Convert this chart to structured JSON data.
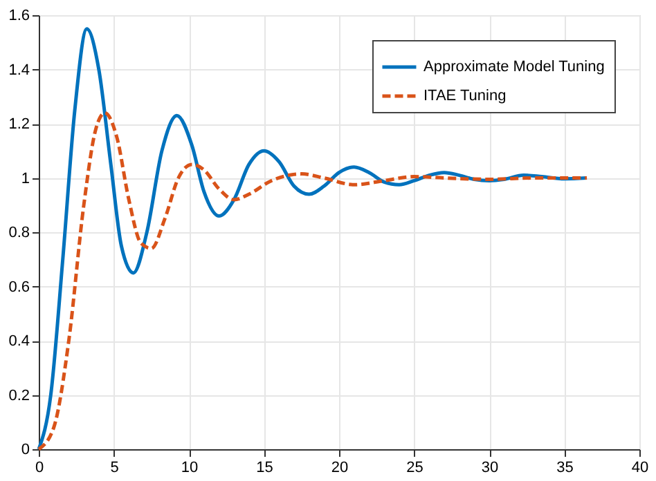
{
  "chart_data": {
    "type": "line",
    "xlim": [
      0,
      40
    ],
    "xticks": [
      0,
      5,
      10,
      15,
      20,
      25,
      30,
      35,
      40
    ],
    "ylim": [
      0,
      1.6
    ],
    "yticks": [
      0,
      0.2,
      0.4,
      0.6,
      0.8,
      1,
      1.2,
      1.4,
      1.6
    ],
    "grid": true,
    "legend": "top right",
    "series": [
      {
        "name": "Approximate Model Tuning",
        "color": "#0072bd",
        "line_style": "solid",
        "x": [
          0,
          0.8,
          1.6,
          2.4,
          3.2,
          4,
          4.8,
          5.5,
          6.3,
          7.2,
          8.2,
          9.2,
          10.2,
          11,
          12,
          13,
          14,
          15,
          16,
          17,
          18,
          19,
          20,
          21,
          22,
          23,
          24,
          25,
          26,
          27,
          28,
          29,
          30,
          31,
          32.3,
          33.5,
          35,
          36.5
        ],
        "values": [
          0,
          0.2,
          0.7,
          1.25,
          1.55,
          1.4,
          1.05,
          0.75,
          0.65,
          0.8,
          1.1,
          1.23,
          1.12,
          0.95,
          0.86,
          0.92,
          1.05,
          1.1,
          1.06,
          0.97,
          0.94,
          0.97,
          1.02,
          1.04,
          1.02,
          0.985,
          0.975,
          0.99,
          1.01,
          1.02,
          1.01,
          0.995,
          0.99,
          0.995,
          1.01,
          1.005,
          0.997,
          1.0
        ]
      },
      {
        "name": "ITAE Tuning",
        "color": "#d95319",
        "line_style": "dashed",
        "x": [
          0,
          1,
          2,
          3,
          3.8,
          4.4,
          5.2,
          6,
          6.8,
          7.5,
          8.4,
          9.3,
          10.2,
          11,
          12,
          13,
          14,
          15.5,
          17.5,
          19,
          21,
          23,
          25,
          27,
          30,
          33,
          36.5
        ],
        "values": [
          0,
          0.08,
          0.4,
          0.9,
          1.18,
          1.24,
          1.15,
          0.92,
          0.76,
          0.74,
          0.85,
          1.0,
          1.05,
          1.03,
          0.96,
          0.92,
          0.94,
          0.99,
          1.015,
          1.0,
          0.975,
          0.99,
          1.005,
          1.0,
          0.995,
          1.0,
          1.0
        ]
      }
    ]
  }
}
